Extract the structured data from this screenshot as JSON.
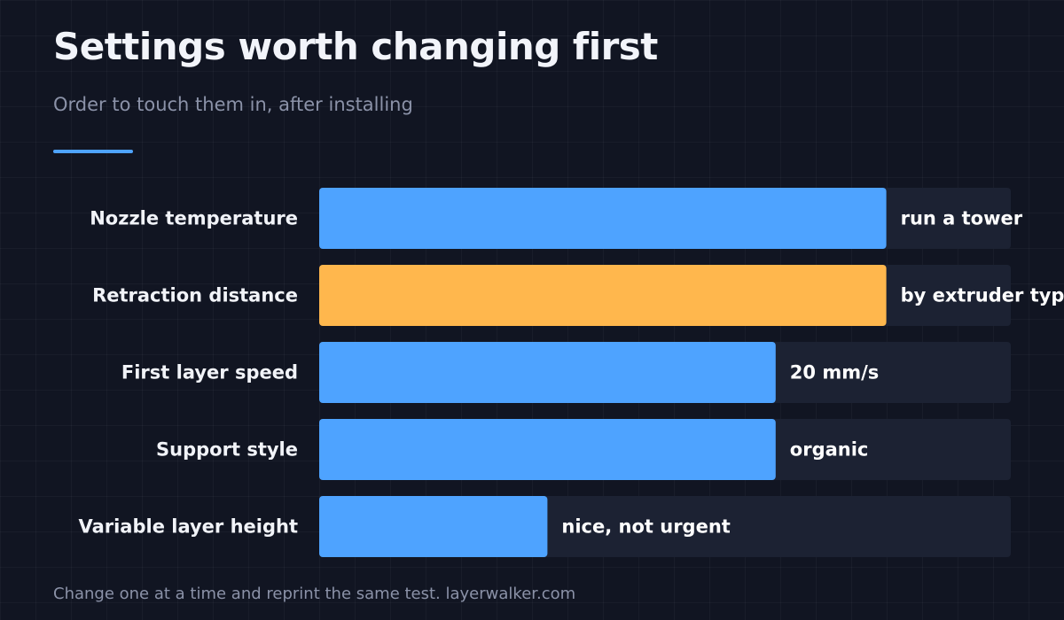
{
  "title": "Settings worth changing first",
  "subtitle": "Order to touch them in, after installing",
  "footer": "Change one at a time and reprint the same test. layerwalker.com",
  "colors": {
    "background": "#111522",
    "track": "#1c2233",
    "bar": "#4ea3ff",
    "highlight": "#ffb74d",
    "accent": "#4ea3ff"
  },
  "chart_data": {
    "type": "bar",
    "orientation": "horizontal",
    "categories": [
      "Nozzle temperature",
      "Retraction distance",
      "First layer speed",
      "Support style",
      "Variable layer height"
    ],
    "values": [
      0.82,
      0.82,
      0.66,
      0.66,
      0.33
    ],
    "value_scale": "fraction of full track",
    "bar_labels": [
      "run a tower",
      "by extruder type",
      "20 mm/s",
      "organic",
      "nice, not urgent"
    ],
    "highlighted": [
      1
    ],
    "xlim": [
      0,
      1
    ],
    "grid": false,
    "legend": false,
    "axes_shown": false
  }
}
